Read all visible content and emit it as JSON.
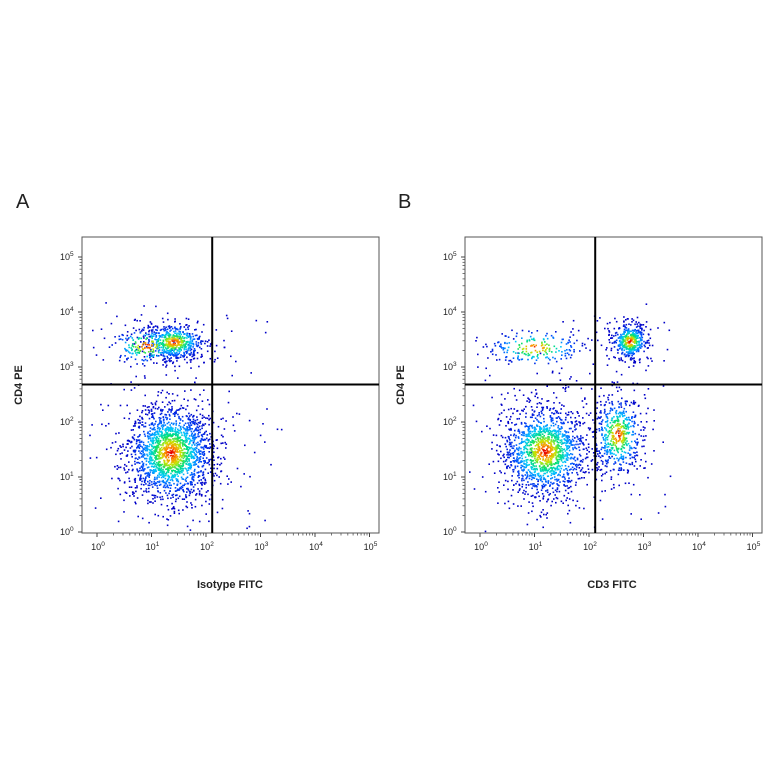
{
  "figure": {
    "panels_count": 2
  },
  "chart_data": [
    {
      "type": "scatter",
      "subtype": "flow-cytometry-density-dot-plot",
      "panel_label": "A",
      "xlabel": "Isotype FITC",
      "ylabel": "CD4 PE",
      "x_scale": "log",
      "y_scale": "log",
      "xlim": [
        1,
        100000
      ],
      "ylim": [
        1,
        100000
      ],
      "x_ticks": [
        1,
        10,
        100,
        1000,
        10000,
        100000
      ],
      "y_ticks": [
        1,
        10,
        100,
        1000,
        10000,
        100000
      ],
      "tick_base": "10",
      "tick_exponents": [
        "0",
        "1",
        "2",
        "3",
        "4",
        "5"
      ],
      "quadrant_gate": {
        "x": 130,
        "y": 480
      },
      "grid": false,
      "colormap": [
        "#0000c8",
        "#0050ff",
        "#00c8ff",
        "#00e070",
        "#c8e600",
        "#ff8c00",
        "#e60000"
      ],
      "populations": [
        {
          "x_center": 22,
          "y_center": 28,
          "x_spread_decades": 0.38,
          "y_spread_decades": 0.42,
          "weight": 0.72
        },
        {
          "x_center": 25,
          "y_center": 2900,
          "x_spread_decades": 0.28,
          "y_spread_decades": 0.16,
          "weight": 0.2
        },
        {
          "x_center": 8,
          "y_center": 2500,
          "x_spread_decades": 0.35,
          "y_spread_decades": 0.18,
          "weight": 0.08
        }
      ]
    },
    {
      "type": "scatter",
      "subtype": "flow-cytometry-density-dot-plot",
      "panel_label": "B",
      "xlabel": "CD3 FITC",
      "ylabel": "CD4 PE",
      "x_scale": "log",
      "y_scale": "log",
      "xlim": [
        1,
        100000
      ],
      "ylim": [
        1,
        100000
      ],
      "x_ticks": [
        1,
        10,
        100,
        1000,
        10000,
        100000
      ],
      "y_ticks": [
        1,
        10,
        100,
        1000,
        10000,
        100000
      ],
      "tick_base": "10",
      "tick_exponents": [
        "0",
        "1",
        "2",
        "3",
        "4",
        "5"
      ],
      "quadrant_gate": {
        "x": 130,
        "y": 480
      },
      "grid": false,
      "colormap": [
        "#0000c8",
        "#0050ff",
        "#00c8ff",
        "#00e070",
        "#c8e600",
        "#ff8c00",
        "#e60000"
      ],
      "populations": [
        {
          "x_center": 15,
          "y_center": 30,
          "x_spread_decades": 0.38,
          "y_spread_decades": 0.4,
          "weight": 0.55
        },
        {
          "x_center": 330,
          "y_center": 60,
          "x_spread_decades": 0.22,
          "y_spread_decades": 0.35,
          "weight": 0.2
        },
        {
          "x_center": 550,
          "y_center": 3000,
          "x_spread_decades": 0.16,
          "y_spread_decades": 0.16,
          "weight": 0.17
        },
        {
          "x_center": 10,
          "y_center": 2300,
          "x_spread_decades": 0.45,
          "y_spread_decades": 0.17,
          "weight": 0.08
        }
      ]
    }
  ]
}
